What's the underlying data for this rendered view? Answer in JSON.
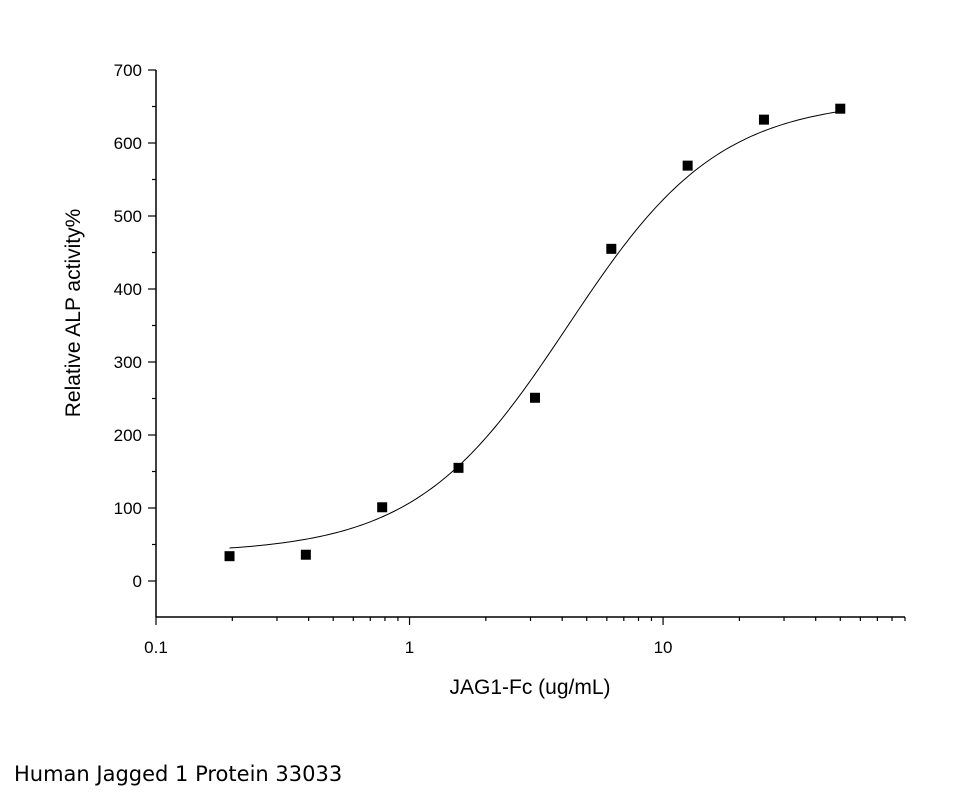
{
  "caption": "Human Jagged 1 Protein 33033",
  "chart_data": {
    "type": "scatter",
    "title": "",
    "xlabel": "JAG1-Fc (ug/mL)",
    "ylabel": "Relative ALP activity%",
    "x_scale": "log",
    "xlim": [
      0.1,
      90
    ],
    "ylim": [
      -40,
      700
    ],
    "x_ticks": [
      0.1,
      1,
      10
    ],
    "x_tick_labels": [
      "0.1",
      "1",
      "10"
    ],
    "y_ticks": [
      0,
      100,
      200,
      300,
      400,
      500,
      600,
      700
    ],
    "y_tick_labels": [
      "0",
      "100",
      "200",
      "300",
      "400",
      "500",
      "600",
      "700"
    ],
    "grid": false,
    "points": [
      {
        "x": 0.195,
        "y": 34
      },
      {
        "x": 0.39,
        "y": 36
      },
      {
        "x": 0.78,
        "y": 101
      },
      {
        "x": 1.56,
        "y": 155
      },
      {
        "x": 3.125,
        "y": 251
      },
      {
        "x": 6.25,
        "y": 455
      },
      {
        "x": 12.5,
        "y": 569
      },
      {
        "x": 25,
        "y": 632
      },
      {
        "x": 50,
        "y": 647
      }
    ],
    "fit": {
      "model": "4PL",
      "bottom": 38,
      "top": 660,
      "ec50": 4.2,
      "hill": 1.45,
      "x_from": 0.195,
      "x_to": 50
    }
  }
}
